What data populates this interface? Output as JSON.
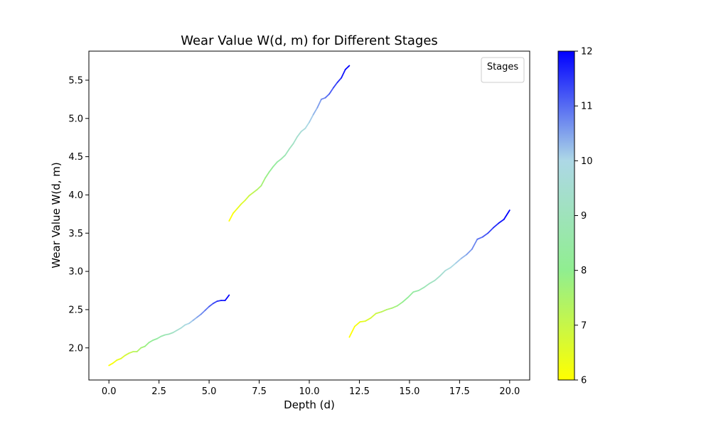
{
  "chart_data": {
    "type": "line",
    "title": "Wear Value W(d, m) for Different Stages",
    "xlabel": "Depth (d)",
    "ylabel": "Wear Value W(d, m)",
    "xlim": [
      -1.0,
      21.0
    ],
    "ylim": [
      1.58,
      5.88
    ],
    "xticks": [
      "0.0",
      "2.5",
      "5.0",
      "7.5",
      "10.0",
      "12.5",
      "15.0",
      "17.5",
      "20.0"
    ],
    "yticks": [
      "2.0",
      "2.5",
      "3.0",
      "3.5",
      "4.0",
      "4.5",
      "5.0",
      "5.5"
    ],
    "grid": false,
    "legend": {
      "title": "Stages",
      "placement": "top-right",
      "entries": []
    },
    "colorbar": {
      "min": 6,
      "max": 12,
      "ticks": [
        "6",
        "7",
        "8",
        "9",
        "10",
        "11",
        "12"
      ],
      "colors": [
        "#ffff00",
        "#90ee90",
        "#add8e6",
        "#0000ff"
      ]
    },
    "series": [
      {
        "x": [
          0.0,
          0.2,
          0.4,
          0.6,
          0.8,
          1.0,
          1.2,
          1.4,
          1.6,
          1.8,
          2.0,
          2.2,
          2.4,
          2.6,
          2.8,
          3.0,
          3.2,
          3.4,
          3.6,
          3.8,
          4.0,
          4.2,
          4.4,
          4.6,
          4.8,
          5.0,
          5.2,
          5.4,
          5.6,
          5.8,
          6.0
        ],
        "y": [
          1.77,
          1.8,
          1.84,
          1.86,
          1.9,
          1.93,
          1.95,
          1.95,
          2.0,
          2.02,
          2.07,
          2.1,
          2.12,
          2.15,
          2.17,
          2.18,
          2.2,
          2.23,
          2.26,
          2.3,
          2.32,
          2.36,
          2.4,
          2.44,
          2.49,
          2.54,
          2.58,
          2.61,
          2.62,
          2.62,
          2.69
        ]
      },
      {
        "x": [
          6.0,
          6.2,
          6.4,
          6.6,
          6.8,
          7.0,
          7.2,
          7.4,
          7.6,
          7.8,
          8.0,
          8.2,
          8.4,
          8.6,
          8.8,
          9.0,
          9.2,
          9.4,
          9.6,
          9.8,
          10.0,
          10.2,
          10.4,
          10.6,
          10.8,
          11.0,
          11.2,
          11.4,
          11.6,
          11.8,
          12.0
        ],
        "y": [
          3.66,
          3.76,
          3.82,
          3.88,
          3.93,
          3.99,
          4.03,
          4.07,
          4.12,
          4.22,
          4.3,
          4.37,
          4.43,
          4.47,
          4.52,
          4.6,
          4.67,
          4.76,
          4.83,
          4.87,
          4.95,
          5.05,
          5.14,
          5.25,
          5.27,
          5.32,
          5.4,
          5.47,
          5.53,
          5.64,
          5.69
        ]
      },
      {
        "x": [
          12.0,
          12.266,
          12.532,
          12.798,
          13.064,
          13.33,
          13.596,
          13.862,
          14.128,
          14.394,
          14.66,
          14.926,
          15.192,
          15.458,
          15.724,
          15.99,
          16.256,
          16.522,
          16.788,
          17.054,
          17.32,
          17.586,
          17.852,
          18.118,
          18.384,
          18.65,
          18.916,
          19.182,
          19.448,
          19.714,
          20.0
        ],
        "y": [
          2.14,
          2.28,
          2.34,
          2.35,
          2.39,
          2.45,
          2.47,
          2.5,
          2.52,
          2.55,
          2.6,
          2.66,
          2.73,
          2.75,
          2.79,
          2.84,
          2.88,
          2.94,
          3.01,
          3.05,
          3.11,
          3.17,
          3.22,
          3.29,
          3.42,
          3.45,
          3.5,
          3.57,
          3.63,
          3.68,
          3.8
        ]
      }
    ]
  }
}
